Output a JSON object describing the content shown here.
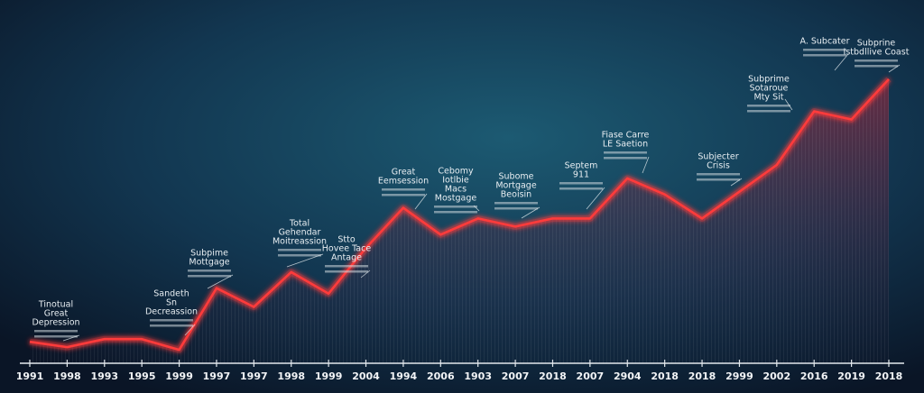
{
  "chart_data": {
    "type": "line",
    "categories": [
      "1991",
      "1998",
      "1993",
      "1995",
      "1999",
      "1997",
      "1997",
      "1998",
      "1999",
      "2004",
      "1994",
      "2006",
      "1903",
      "2007",
      "2018",
      "2007",
      "2904",
      "2018",
      "2018",
      "2999",
      "2002",
      "2016",
      "2019",
      "2018"
    ],
    "series": [
      {
        "color": "#ff3b3b",
        "values": [
          7,
          5,
          8,
          8,
          4,
          27,
          20,
          33,
          25,
          42,
          57,
          47,
          53,
          50,
          53,
          53,
          68,
          62,
          53,
          63,
          73,
          93,
          90,
          105
        ]
      }
    ],
    "ylim": [
      0,
      110
    ],
    "annotations": [
      [
        "Tinotual",
        "Great",
        "Depression"
      ],
      [
        "Sandeth",
        "Sn",
        "Decreassion"
      ],
      [
        "Subpime",
        "Mottgage"
      ],
      [
        "Total",
        "Gehendar",
        "Moitreassion"
      ],
      [
        "Stto",
        "Hovee Tace",
        "Antage"
      ],
      [
        "Great",
        "Eemsession"
      ],
      [
        "Cebomy",
        "Iotlbie",
        "Macs",
        "Mostgage"
      ],
      [
        "Subome",
        "Mortgage",
        "Beoisin"
      ],
      [
        "Septem",
        "911"
      ],
      [
        "Fiase Carre",
        "LE Saetion"
      ],
      [
        "Subjecter",
        "Crisis"
      ],
      [
        "Subprime",
        "Sotaroue",
        "Mty Sit"
      ],
      [
        "A. Subcater"
      ],
      [
        "Subprine",
        "Istbdllive Coast"
      ]
    ]
  }
}
